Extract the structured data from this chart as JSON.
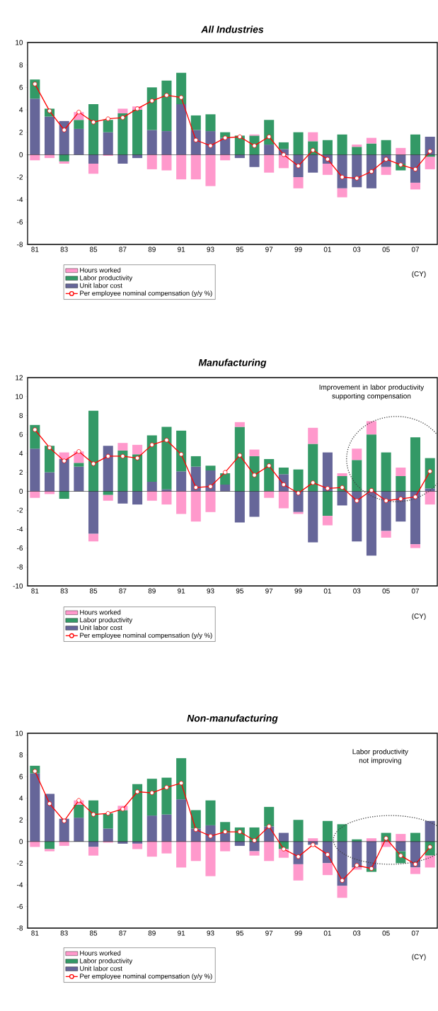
{
  "chart_data": [
    {
      "type": "bar",
      "title": "All Industries",
      "xlabel": "(CY)",
      "stacked": true,
      "legend": "bottom",
      "categories": [
        "81",
        null,
        "83",
        null,
        "85",
        null,
        "87",
        null,
        "89",
        null,
        "91",
        null,
        "93",
        null,
        "95",
        null,
        "97",
        null,
        "99",
        null,
        "01",
        null,
        "03",
        null,
        "05",
        null,
        "07",
        null
      ],
      "ylim": [
        -8,
        10
      ],
      "yticks": [
        -8,
        -6,
        -4,
        -2,
        0,
        2,
        4,
        6,
        8,
        10
      ],
      "series": [
        {
          "name": "Unit labor cost",
          "color": "#666699",
          "values": [
            5.0,
            3.4,
            3.0,
            2.3,
            -0.8,
            2.0,
            -0.8,
            -0.3,
            2.2,
            2.1,
            4.5,
            2.2,
            2.1,
            1.5,
            -0.3,
            -1.1,
            0.9,
            0.5,
            -2.0,
            -1.6,
            -0.8,
            -3.0,
            -2.9,
            -3.0,
            -1.1,
            -0.8,
            -2.5,
            1.6
          ]
        },
        {
          "name": "Labor productivity",
          "color": "#339966",
          "values": [
            1.7,
            0.7,
            -0.6,
            0.8,
            4.5,
            1.1,
            3.7,
            4.0,
            3.8,
            4.5,
            2.8,
            1.3,
            1.5,
            0.5,
            1.7,
            1.7,
            2.2,
            0.6,
            2.0,
            1.2,
            1.3,
            1.8,
            0.7,
            1.0,
            1.3,
            -0.6,
            1.8,
            -0.2
          ]
        },
        {
          "name": "Hours worked",
          "color": "#ff99cc",
          "values": [
            -0.5,
            -0.3,
            -0.2,
            0.7,
            -0.9,
            -0.1,
            0.4,
            0.3,
            -1.3,
            -1.4,
            -2.2,
            -2.2,
            -2.8,
            -0.5,
            null,
            0.1,
            -1.6,
            -1.2,
            -1.0,
            0.8,
            -1.0,
            -0.8,
            0.2,
            0.5,
            -0.7,
            0.6,
            -0.6,
            -1.1
          ]
        },
        {
          "name": "Per employee nominal compensation (y/y %)",
          "type": "line",
          "color": "#ff0000",
          "marker": "circle",
          "line_style": "solid",
          "values": [
            6.3,
            3.9,
            2.2,
            3.8,
            2.9,
            3.2,
            3.3,
            4.1,
            4.8,
            5.3,
            5.1,
            1.3,
            0.8,
            1.5,
            1.6,
            0.8,
            1.6,
            0.0,
            -1.0,
            0.4,
            -0.4,
            -2.0,
            -2.1,
            -1.5,
            -0.4,
            -0.9,
            -1.3,
            0.3
          ]
        }
      ]
    },
    {
      "type": "bar",
      "title": "Manufacturing",
      "xlabel": "(CY)",
      "stacked": true,
      "legend": "bottom",
      "categories": [
        "81",
        null,
        "83",
        null,
        "85",
        null,
        "87",
        null,
        "89",
        null,
        "91",
        null,
        "93",
        null,
        "95",
        null,
        "97",
        null,
        "99",
        null,
        "01",
        null,
        "03",
        null,
        "05",
        null,
        "07",
        null
      ],
      "ylim": [
        -10,
        12
      ],
      "yticks": [
        -10,
        -8,
        -6,
        -4,
        -2,
        0,
        2,
        4,
        6,
        8,
        10,
        12
      ],
      "annotations": [
        "Improvement in labor productivity supporting compensation"
      ],
      "series": [
        {
          "name": "Unit labor cost",
          "color": "#666699",
          "values": [
            4.5,
            2.0,
            3.4,
            2.6,
            -4.5,
            4.8,
            -1.3,
            -1.4,
            1.0,
            0.2,
            2.1,
            2.6,
            2.2,
            0.7,
            -3.3,
            -2.7,
            null,
            1.8,
            -2.2,
            -5.4,
            4.1,
            -1.5,
            -5.3,
            -6.8,
            -4.2,
            -3.2,
            -5.6,
            0.3
          ]
        },
        {
          "name": "Labor productivity",
          "color": "#339966",
          "values": [
            2.5,
            2.8,
            -0.8,
            0.4,
            8.5,
            -0.4,
            4.3,
            3.9,
            4.9,
            6.6,
            4.3,
            1.1,
            0.5,
            1.2,
            6.8,
            3.7,
            3.4,
            0.7,
            2.3,
            5.0,
            -2.6,
            1.6,
            3.3,
            6.0,
            4.1,
            1.6,
            5.7,
            3.2
          ]
        },
        {
          "name": "Hours worked",
          "color": "#ff99cc",
          "values": [
            -0.7,
            -0.3,
            0.7,
            1.2,
            -0.8,
            -0.6,
            0.8,
            1.0,
            -1.0,
            -1.4,
            -2.4,
            -3.2,
            -2.2,
            null,
            0.5,
            0.7,
            -0.7,
            -1.8,
            -0.2,
            1.7,
            -1.0,
            0.3,
            1.2,
            1.4,
            -0.7,
            0.9,
            -0.4,
            -1.4
          ]
        },
        {
          "name": "Per employee nominal compensation (y/y %)",
          "type": "line",
          "color": "#ff0000",
          "marker": "circle",
          "line_style": "solid",
          "values": [
            6.5,
            4.6,
            3.2,
            4.2,
            2.9,
            3.7,
            3.7,
            3.5,
            4.9,
            5.4,
            3.9,
            0.4,
            0.5,
            2.0,
            3.8,
            1.7,
            2.7,
            0.7,
            -0.2,
            0.9,
            0.3,
            0.4,
            -1.0,
            0.1,
            -1.0,
            -0.8,
            -0.6,
            2.1
          ]
        }
      ]
    },
    {
      "type": "bar",
      "title": "Non-manufacturing",
      "xlabel": "(CY)",
      "stacked": true,
      "legend": "bottom",
      "categories": [
        "81",
        null,
        "83",
        null,
        "85",
        null,
        "87",
        null,
        "89",
        null,
        "91",
        null,
        "93",
        null,
        "95",
        null,
        "97",
        null,
        "99",
        null,
        "01",
        null,
        "03",
        null,
        "05",
        null,
        "07",
        null
      ],
      "ylim": [
        -8,
        10
      ],
      "yticks": [
        -8,
        -6,
        -4,
        -2,
        0,
        2,
        4,
        6,
        8,
        10
      ],
      "annotations": [
        "Labor productivity not improving"
      ],
      "series": [
        {
          "name": "Unit labor cost",
          "color": "#666699",
          "values": [
            6.3,
            4.4,
            2.1,
            2.2,
            -0.5,
            1.2,
            -0.2,
            -0.2,
            2.4,
            2.5,
            3.9,
            1.2,
            1.5,
            0.8,
            -0.4,
            -0.9,
            1.4,
            0.8,
            -2.1,
            -0.3,
            -2.0,
            -4.1,
            -2.4,
            -2.5,
            null,
            -0.9,
            -2.4,
            1.9
          ]
        },
        {
          "name": "Labor productivity",
          "color": "#339966",
          "values": [
            0.7,
            -0.7,
            null,
            1.2,
            3.8,
            1.4,
            2.9,
            5.3,
            3.4,
            3.4,
            3.8,
            1.7,
            2.3,
            1.0,
            1.3,
            1.3,
            1.8,
            -0.7,
            2.0,
            null,
            1.9,
            1.6,
            0.2,
            -0.3,
            0.8,
            -1.1,
            0.8,
            -1.3
          ]
        },
        {
          "name": "Hours worked",
          "color": "#ff99cc",
          "values": [
            -0.5,
            -0.2,
            -0.4,
            0.4,
            -0.8,
            -0.1,
            0.4,
            -0.5,
            -1.4,
            -1.1,
            -2.4,
            -1.8,
            -3.2,
            -0.9,
            null,
            -0.4,
            -1.8,
            -0.8,
            -1.5,
            0.3,
            -1.1,
            -1.1,
            -0.2,
            0.3,
            -0.5,
            0.7,
            -0.6,
            -1.1
          ]
        },
        {
          "name": "Per employee nominal compensation (y/y %)",
          "type": "line",
          "color": "#ff0000",
          "marker": "circle",
          "line_style": "solid",
          "values": [
            6.5,
            3.5,
            1.9,
            3.8,
            2.5,
            2.6,
            3.0,
            4.6,
            4.5,
            5.0,
            5.4,
            1.1,
            0.5,
            0.9,
            0.9,
            0.1,
            1.4,
            -0.7,
            -1.4,
            -0.3,
            -1.2,
            -3.6,
            -2.2,
            -2.5,
            0.3,
            -1.3,
            -2.1,
            -0.5
          ]
        }
      ]
    }
  ]
}
